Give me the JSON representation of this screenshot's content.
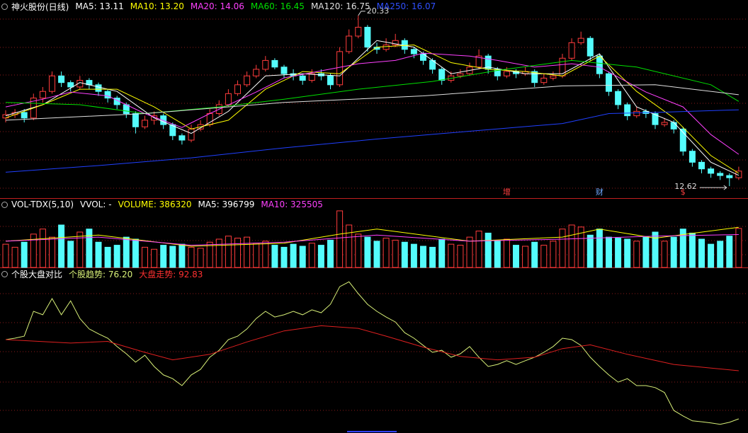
{
  "chart_data": [
    {
      "type": "candlestick",
      "header": [
        {
          "text": "神火股份(日线)",
          "color": "#ffffff"
        },
        {
          "text": "MA5: 13.11",
          "color": "#ffffff"
        },
        {
          "text": "MA10: 13.20",
          "color": "#ffff00"
        },
        {
          "text": "MA20: 14.06",
          "color": "#ff40ff"
        },
        {
          "text": "MA60: 16.45",
          "color": "#00e000"
        },
        {
          "text": "MA120: 16.75",
          "color": "#e0e0e0"
        },
        {
          "text": "MA250: 16.07",
          "color": "#3050ff"
        }
      ],
      "ylim": [
        12.08,
        21.03
      ],
      "up_color": "#ff3c3c",
      "down_color": "#54fcfc",
      "candles": [
        [
          15.7,
          16.05,
          15.5,
          15.85
        ],
        [
          15.85,
          16.1,
          15.7,
          15.95
        ],
        [
          15.95,
          16.1,
          15.5,
          15.7
        ],
        [
          15.7,
          16.8,
          15.6,
          16.6
        ],
        [
          16.6,
          17.1,
          16.4,
          16.9
        ],
        [
          16.9,
          17.8,
          16.8,
          17.6
        ],
        [
          17.6,
          17.8,
          17.1,
          17.3
        ],
        [
          17.3,
          17.4,
          16.9,
          17.1
        ],
        [
          17.1,
          17.6,
          17.0,
          17.4
        ],
        [
          17.4,
          17.5,
          17.0,
          17.2
        ],
        [
          17.2,
          17.3,
          16.7,
          16.9
        ],
        [
          16.9,
          17.0,
          16.4,
          16.6
        ],
        [
          16.6,
          16.7,
          16.1,
          16.3
        ],
        [
          16.3,
          16.4,
          15.7,
          15.9
        ],
        [
          15.9,
          16.0,
          15.0,
          15.3
        ],
        [
          15.3,
          15.8,
          15.2,
          15.6
        ],
        [
          15.6,
          16.0,
          15.4,
          15.8
        ],
        [
          15.8,
          15.9,
          15.2,
          15.4
        ],
        [
          15.4,
          15.5,
          14.7,
          14.9
        ],
        [
          14.9,
          15.0,
          14.5,
          14.7
        ],
        [
          14.7,
          15.4,
          14.6,
          15.2
        ],
        [
          15.2,
          15.6,
          15.1,
          15.4
        ],
        [
          15.4,
          16.1,
          15.3,
          15.9
        ],
        [
          15.9,
          16.5,
          15.8,
          16.3
        ],
        [
          16.3,
          17.0,
          16.2,
          16.8
        ],
        [
          16.8,
          17.4,
          16.7,
          17.2
        ],
        [
          17.2,
          17.8,
          17.1,
          17.6
        ],
        [
          17.6,
          18.1,
          17.5,
          17.9
        ],
        [
          17.9,
          18.5,
          17.8,
          18.3
        ],
        [
          18.3,
          18.4,
          17.9,
          18.0
        ],
        [
          18.0,
          18.1,
          17.5,
          17.7
        ],
        [
          17.7,
          17.9,
          17.4,
          17.6
        ],
        [
          17.6,
          17.7,
          17.2,
          17.4
        ],
        [
          17.4,
          17.9,
          17.3,
          17.7
        ],
        [
          17.7,
          17.9,
          17.4,
          17.6
        ],
        [
          17.6,
          17.7,
          17.0,
          17.2
        ],
        [
          17.2,
          18.9,
          17.1,
          18.7
        ],
        [
          18.7,
          19.7,
          18.6,
          19.4
        ],
        [
          19.4,
          20.33,
          19.3,
          19.8
        ],
        [
          19.8,
          19.9,
          18.7,
          18.9
        ],
        [
          18.9,
          19.1,
          18.6,
          18.8
        ],
        [
          18.8,
          19.3,
          18.7,
          19.0
        ],
        [
          19.0,
          19.5,
          18.9,
          19.2
        ],
        [
          19.2,
          19.3,
          18.6,
          18.8
        ],
        [
          18.8,
          18.9,
          18.4,
          18.6
        ],
        [
          18.6,
          18.7,
          18.1,
          18.3
        ],
        [
          18.3,
          18.4,
          17.7,
          17.9
        ],
        [
          17.9,
          18.0,
          17.2,
          17.4
        ],
        [
          17.4,
          17.8,
          17.3,
          17.6
        ],
        [
          17.6,
          17.9,
          17.5,
          17.7
        ],
        [
          17.7,
          18.2,
          17.6,
          18.0
        ],
        [
          18.0,
          18.8,
          17.9,
          18.5
        ],
        [
          18.5,
          18.6,
          17.7,
          17.9
        ],
        [
          17.9,
          18.0,
          17.4,
          17.6
        ],
        [
          17.6,
          18.0,
          17.5,
          17.8
        ],
        [
          17.8,
          17.9,
          17.5,
          17.7
        ],
        [
          17.7,
          18.0,
          17.6,
          17.8
        ],
        [
          17.8,
          17.9,
          17.1,
          17.3
        ],
        [
          17.3,
          17.7,
          17.2,
          17.5
        ],
        [
          17.5,
          17.8,
          17.4,
          17.6
        ],
        [
          17.6,
          18.6,
          17.5,
          18.4
        ],
        [
          18.4,
          19.3,
          18.3,
          19.1
        ],
        [
          19.1,
          19.6,
          19.0,
          19.3
        ],
        [
          19.3,
          19.4,
          18.3,
          18.5
        ],
        [
          18.5,
          18.6,
          17.5,
          17.7
        ],
        [
          17.7,
          17.8,
          16.7,
          16.9
        ],
        [
          16.9,
          17.0,
          16.1,
          16.3
        ],
        [
          16.3,
          16.4,
          15.6,
          15.8
        ],
        [
          15.8,
          16.2,
          15.7,
          16.0
        ],
        [
          16.0,
          16.1,
          15.7,
          15.9
        ],
        [
          15.9,
          16.0,
          15.2,
          15.4
        ],
        [
          15.4,
          15.7,
          15.3,
          15.5
        ],
        [
          15.5,
          15.6,
          15.0,
          15.2
        ],
        [
          15.2,
          15.3,
          14.0,
          14.2
        ],
        [
          14.2,
          14.3,
          13.5,
          13.7
        ],
        [
          13.7,
          13.8,
          13.2,
          13.4
        ],
        [
          13.4,
          13.5,
          13.0,
          13.2
        ],
        [
          13.2,
          13.3,
          12.9,
          13.1
        ],
        [
          13.1,
          13.2,
          12.62,
          13.0
        ],
        [
          13.0,
          13.5,
          12.9,
          13.3
        ]
      ],
      "series": [
        {
          "color": "#ffffff",
          "x": [
            0,
            4,
            8,
            12,
            16,
            20,
            24,
            28,
            32,
            36,
            40,
            44,
            48,
            52,
            56,
            60,
            64,
            68,
            72,
            76,
            79
          ],
          "values": [
            15.8,
            16.3,
            17.3,
            16.9,
            15.7,
            15.0,
            16.0,
            17.6,
            17.7,
            17.6,
            19.2,
            18.9,
            17.7,
            18.0,
            17.7,
            17.7,
            18.6,
            16.2,
            15.5,
            13.7,
            13.11
          ]
        },
        {
          "color": "#ffff00",
          "x": [
            0,
            4,
            8,
            12,
            16,
            20,
            24,
            28,
            32,
            36,
            40,
            44,
            48,
            52,
            56,
            60,
            64,
            68,
            72,
            76,
            79
          ],
          "values": [
            15.7,
            16.3,
            17.0,
            17.0,
            16.2,
            15.2,
            15.6,
            17.0,
            17.8,
            17.7,
            18.9,
            19.0,
            18.2,
            17.9,
            17.8,
            17.6,
            18.5,
            16.9,
            15.7,
            14.0,
            13.2
          ]
        },
        {
          "color": "#ff40ff",
          "x": [
            0,
            4,
            7,
            11,
            15,
            19,
            22,
            27,
            30,
            34,
            38,
            42,
            45,
            50,
            53,
            57,
            61,
            64,
            69,
            73,
            76,
            79
          ],
          "values": [
            16.2,
            16.55,
            16.87,
            16.7,
            15.9,
            15.27,
            15.9,
            16.87,
            17.51,
            17.83,
            18.15,
            18.3,
            18.63,
            18.5,
            18.3,
            18.0,
            18.15,
            18.0,
            16.87,
            16.2,
            14.95,
            14.06
          ]
        },
        {
          "color": "#00e000",
          "x": [
            0,
            8,
            15,
            23,
            30,
            38,
            46,
            53,
            61,
            68,
            76,
            79
          ],
          "values": [
            16.4,
            16.3,
            15.9,
            16.2,
            16.55,
            17.0,
            17.35,
            17.85,
            18.3,
            18.0,
            17.2,
            16.45
          ]
        },
        {
          "color": "#e0e0e0",
          "x": [
            0,
            15,
            30,
            45,
            60,
            70,
            79
          ],
          "values": [
            15.6,
            15.9,
            16.4,
            16.7,
            17.15,
            17.2,
            16.75
          ]
        },
        {
          "color": "#2040ff",
          "x": [
            0,
            10,
            20,
            30,
            40,
            50,
            60,
            65,
            70,
            79
          ],
          "values": [
            13.25,
            13.55,
            13.9,
            14.35,
            14.75,
            15.1,
            15.45,
            15.9,
            15.95,
            16.07
          ]
        }
      ],
      "markers": [
        {
          "text": "增",
          "color": "#ff4040",
          "index": 54
        },
        {
          "text": "财",
          "color": "#6fa8ff",
          "index": 64
        },
        {
          "text": "$",
          "color": "#ff4040",
          "index": 73
        }
      ]
    },
    {
      "type": "bar",
      "header": [
        {
          "text": "VOL-TDX(5,10)",
          "color": "#ffffff"
        },
        {
          "text": "VVOL: -",
          "color": "#ffffff"
        },
        {
          "text": "VOLUME: 386320",
          "color": "#ffff00"
        },
        {
          "text": "MA5: 396799",
          "color": "#ffffff"
        },
        {
          "text": "MA10: 325505",
          "color": "#ff40ff"
        }
      ],
      "ylim": [
        0,
        560000
      ],
      "values": [
        230000,
        200000,
        250000,
        330000,
        380000,
        300000,
        420000,
        260000,
        350000,
        380000,
        250000,
        200000,
        220000,
        300000,
        280000,
        200000,
        180000,
        220000,
        210000,
        230000,
        200000,
        190000,
        250000,
        280000,
        310000,
        290000,
        300000,
        240000,
        260000,
        220000,
        200000,
        230000,
        210000,
        240000,
        220000,
        270000,
        560000,
        420000,
        330000,
        300000,
        260000,
        290000,
        270000,
        250000,
        230000,
        210000,
        200000,
        280000,
        230000,
        220000,
        300000,
        360000,
        340000,
        260000,
        280000,
        220000,
        210000,
        250000,
        220000,
        260000,
        380000,
        420000,
        400000,
        320000,
        380000,
        300000,
        290000,
        280000,
        260000,
        300000,
        350000,
        260000,
        300000,
        380000,
        340000,
        280000,
        230000,
        260000,
        310000,
        386320
      ],
      "series": [
        {
          "color": "#ffff00",
          "x": [
            0,
            10,
            20,
            30,
            36,
            40,
            50,
            60,
            64,
            70,
            79
          ],
          "values": [
            260000,
            320000,
            210000,
            240000,
            330000,
            380000,
            260000,
            300000,
            380000,
            290000,
            396799
          ]
        },
        {
          "color": "#ff40ff",
          "x": [
            0,
            10,
            20,
            30,
            40,
            50,
            60,
            70,
            79
          ],
          "values": [
            260000,
            300000,
            220000,
            250000,
            320000,
            260000,
            280000,
            310000,
            325505
          ]
        }
      ]
    },
    {
      "type": "line",
      "header": [
        {
          "text": "个股大盘对比",
          "color": "#ffffff"
        },
        {
          "text": "个股趋势: 76.20",
          "color": "#d8f078"
        },
        {
          "text": "大盘走势: 92.83",
          "color": "#ff3030"
        }
      ],
      "ylim": [
        71.3,
        124.4
      ],
      "series": [
        {
          "color": "#d8f078",
          "values": [
            103.6,
            104.1,
            104.8,
            113.4,
            112.2,
            117.8,
            112.2,
            117.0,
            110.9,
            107.3,
            105.6,
            104.1,
            101.2,
            98.7,
            95.8,
            98.2,
            94.3,
            91.4,
            90.1,
            87.7,
            91.4,
            93.3,
            97.5,
            99.9,
            103.6,
            104.8,
            107.3,
            110.9,
            113.4,
            111.4,
            112.2,
            113.4,
            112.2,
            113.9,
            112.9,
            115.8,
            121.9,
            123.6,
            119.5,
            115.8,
            113.4,
            111.4,
            109.7,
            106.0,
            104.1,
            101.6,
            99.2,
            99.9,
            97.5,
            98.7,
            101.2,
            97.5,
            94.3,
            95.0,
            96.3,
            95.0,
            96.3,
            97.5,
            99.2,
            101.2,
            104.1,
            103.6,
            101.6,
            97.5,
            94.3,
            91.4,
            88.9,
            90.1,
            87.7,
            87.7,
            87.0,
            85.3,
            79.1,
            77.2,
            75.5,
            75.2,
            74.8,
            74.3,
            75.0,
            76.2
          ]
        },
        {
          "color": "#e02020",
          "x": [
            0,
            7,
            11,
            15,
            18,
            22,
            26,
            30,
            34,
            38,
            41,
            45,
            49,
            53,
            57,
            60,
            63,
            67,
            72,
            79
          ],
          "values": [
            103.6,
            102.4,
            103.0,
            99.2,
            96.6,
            98.5,
            102.8,
            106.6,
            108.4,
            107.5,
            104.8,
            101.0,
            97.8,
            96.6,
            97.5,
            100.5,
            101.8,
            98.5,
            95.0,
            92.83
          ]
        }
      ]
    }
  ]
}
